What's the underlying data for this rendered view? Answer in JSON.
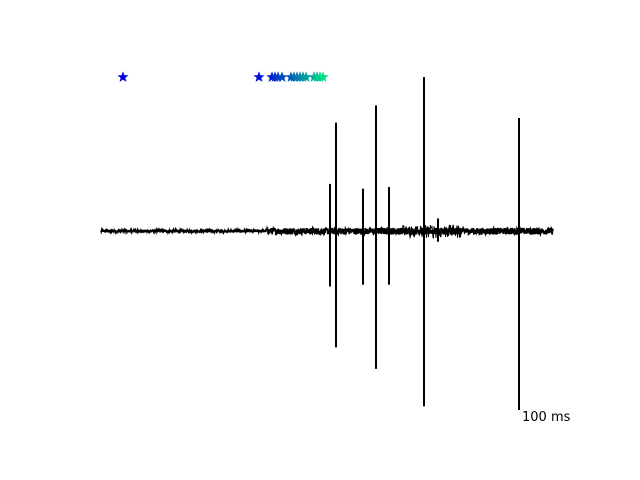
{
  "chart_data": {
    "type": "line",
    "title": "",
    "xlabel": "",
    "ylabel": "",
    "axes_visible": false,
    "grid": false,
    "xlim": [
      0,
      455
    ],
    "ylim": [
      -1.0,
      1.0
    ],
    "trace_color": "#000000",
    "baseline": {
      "x_start": 0,
      "x_end": 452,
      "y": 0.0,
      "dense_from": 165,
      "noise_before": 0.008,
      "noise_after": 0.02
    },
    "spikes": [
      {
        "x": 229,
        "min": -0.31,
        "max": 0.3
      },
      {
        "x": 235,
        "min": -0.65,
        "max": 0.69
      },
      {
        "x": 262,
        "min": -0.3,
        "max": 0.27
      },
      {
        "x": 275,
        "min": -0.77,
        "max": 0.8
      },
      {
        "x": 288,
        "min": -0.3,
        "max": 0.28
      },
      {
        "x": 323,
        "min": -0.98,
        "max": 0.98
      },
      {
        "x": 337,
        "min": -0.06,
        "max": 0.08
      },
      {
        "x": 418,
        "min": -1.0,
        "max": 0.72
      }
    ],
    "burst": {
      "x_start": 300,
      "x_end": 360,
      "amplitude": 0.04
    },
    "event_markers": {
      "marker": "star",
      "y": 0.98,
      "colormap_start": "#0000dd",
      "colormap_end": "#00dd88",
      "x": [
        22,
        158,
        171,
        174,
        177,
        181,
        190,
        193,
        196,
        199,
        202,
        205,
        213,
        216,
        219,
        222
      ]
    },
    "scale_bar": {
      "label": "100 ms",
      "length_ms": 100
    }
  }
}
